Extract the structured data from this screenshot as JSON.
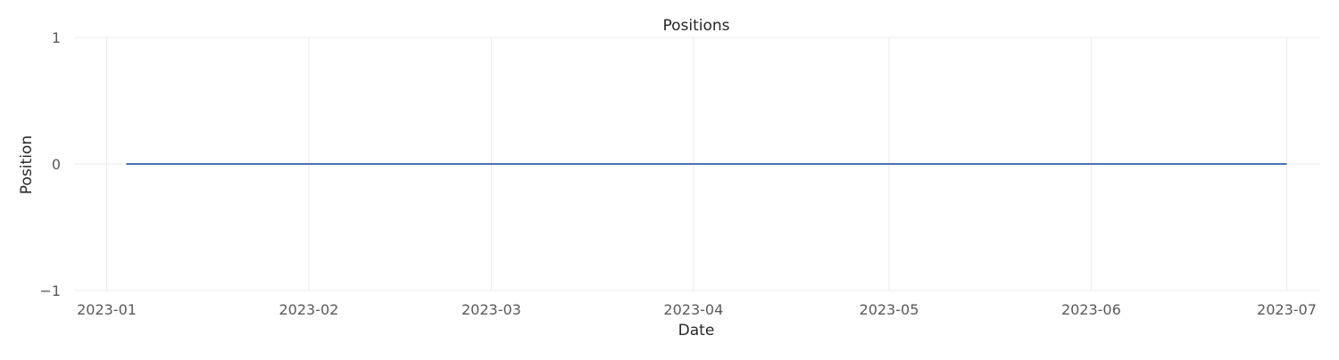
{
  "chart_data": {
    "type": "line",
    "title": "Positions",
    "xlabel": "Date",
    "ylabel": "Position",
    "x_type": "date",
    "xlim": [
      "2022-12-27",
      "2023-07-06"
    ],
    "ylim": [
      -1,
      1
    ],
    "x_ticks": [
      {
        "value": "2023-01-01",
        "label": "2023-01"
      },
      {
        "value": "2023-02-01",
        "label": "2023-02"
      },
      {
        "value": "2023-03-01",
        "label": "2023-03"
      },
      {
        "value": "2023-04-01",
        "label": "2023-04"
      },
      {
        "value": "2023-05-01",
        "label": "2023-05"
      },
      {
        "value": "2023-06-01",
        "label": "2023-06"
      },
      {
        "value": "2023-07-01",
        "label": "2023-07"
      }
    ],
    "y_ticks": [
      {
        "value": -1,
        "label": "−1"
      },
      {
        "value": 0,
        "label": "0"
      },
      {
        "value": 1,
        "label": "1"
      }
    ],
    "grid": true,
    "series": [
      {
        "color": "#4c72b0",
        "x": [
          "2023-01-04",
          "2023-07-01"
        ],
        "y": [
          0,
          0
        ]
      }
    ]
  }
}
